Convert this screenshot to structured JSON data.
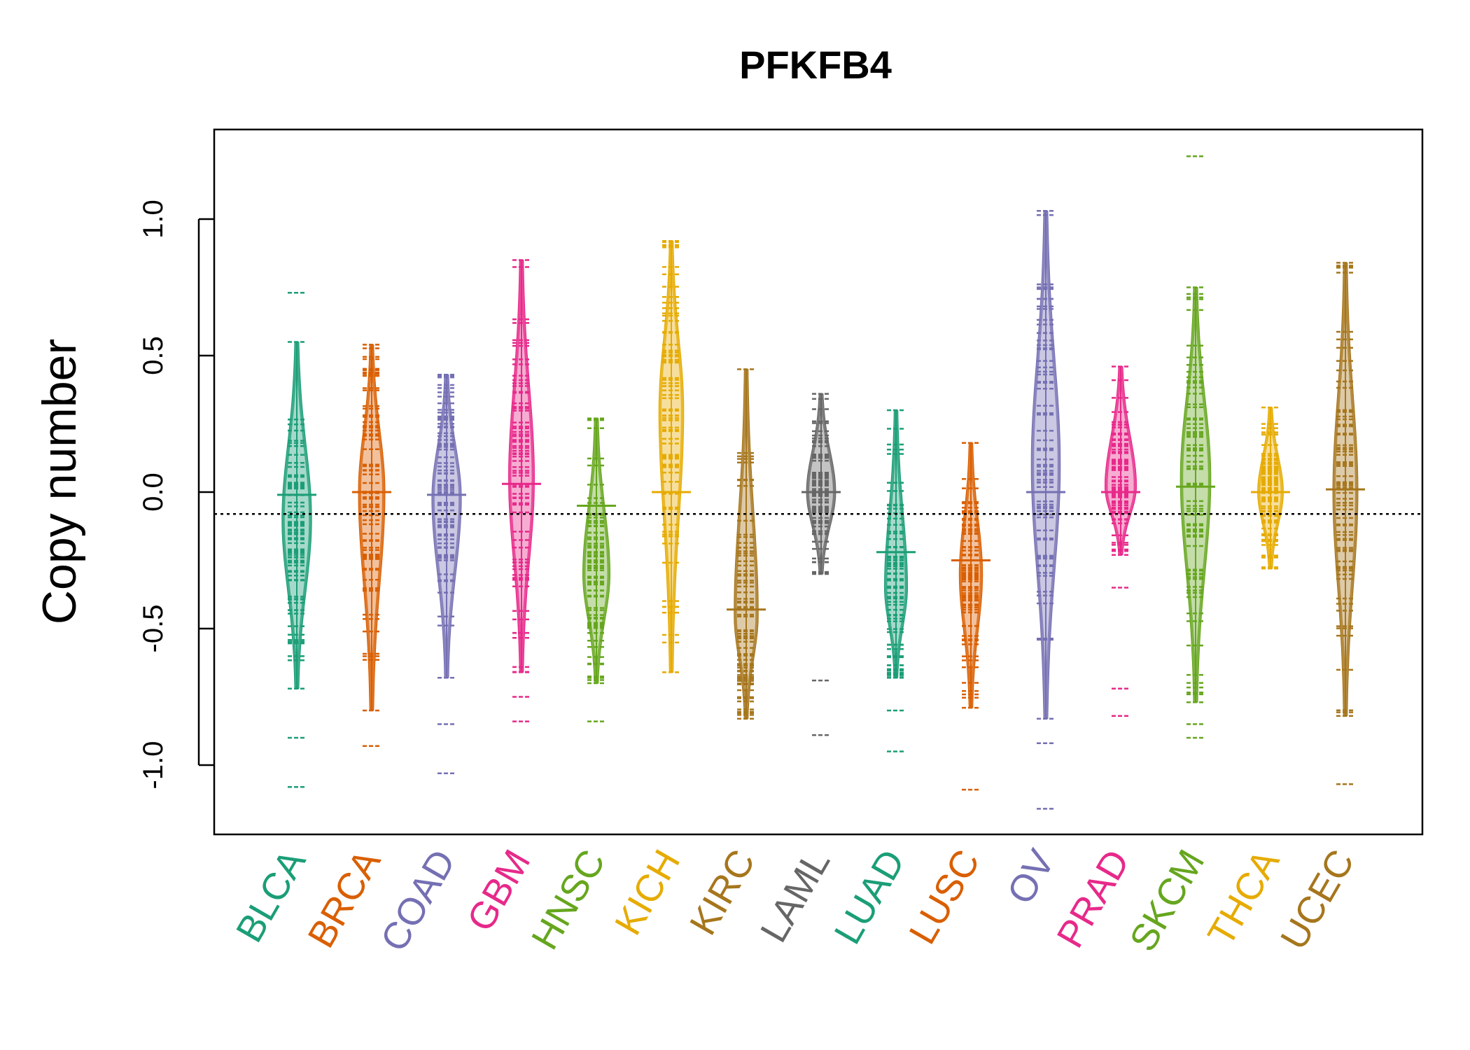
{
  "chart_data": {
    "type": "beanplot",
    "title": "PFKFB4",
    "xlabel": "",
    "ylabel": "Copy number",
    "ylim": [
      -1.25,
      1.3
    ],
    "y_ticks": [
      -1.0,
      -0.5,
      0.0,
      0.5,
      1.0
    ],
    "y_tick_labels": [
      "-1.0",
      "-0.5",
      "0.0",
      "0.5",
      "1.0"
    ],
    "reference_line": -0.08,
    "categories": [
      {
        "name": "BLCA",
        "color": "#1B9E77",
        "min": -0.72,
        "max": 0.55,
        "mean": -0.01,
        "outliers": [
          0.73,
          -0.9,
          -1.08
        ],
        "mode": -0.1
      },
      {
        "name": "BRCA",
        "color": "#D95F02",
        "min": -0.8,
        "max": 0.54,
        "mean": 0.0,
        "outliers": [
          -0.93
        ],
        "mode": 0.0
      },
      {
        "name": "COAD",
        "color": "#7570B3",
        "min": -0.68,
        "max": 0.43,
        "mean": -0.01,
        "outliers": [
          -0.85,
          -1.03
        ],
        "mode": -0.02
      },
      {
        "name": "GBM",
        "color": "#E7298A",
        "min": -0.66,
        "max": 0.85,
        "mean": 0.03,
        "outliers": [
          -0.75,
          -0.84
        ],
        "mode": 0.05
      },
      {
        "name": "HNSC",
        "color": "#66A61E",
        "min": -0.7,
        "max": 0.27,
        "mean": -0.05,
        "outliers": [
          -0.84
        ],
        "mode": -0.3
      },
      {
        "name": "KICH",
        "color": "#E6AB02",
        "min": -0.66,
        "max": 0.92,
        "mean": 0.0,
        "outliers": [],
        "mode": 0.3
      },
      {
        "name": "KIRC",
        "color": "#A6761D",
        "min": -0.83,
        "max": 0.45,
        "mean": -0.43,
        "outliers": [],
        "mode": -0.45
      },
      {
        "name": "LAML",
        "color": "#666666",
        "min": -0.3,
        "max": 0.36,
        "mean": 0.0,
        "outliers": [
          -0.69,
          -0.89
        ],
        "mode": 0.0
      },
      {
        "name": "LUAD",
        "color": "#1B9E77",
        "min": -0.68,
        "max": 0.3,
        "mean": -0.22,
        "outliers": [
          -0.8,
          -0.95
        ],
        "mode": -0.35
      },
      {
        "name": "LUSC",
        "color": "#D95F02",
        "min": -0.79,
        "max": 0.18,
        "mean": -0.25,
        "outliers": [
          -1.09
        ],
        "mode": -0.3
      },
      {
        "name": "OV",
        "color": "#7570B3",
        "min": -0.83,
        "max": 1.03,
        "mean": 0.0,
        "outliers": [
          -0.92,
          -1.16
        ],
        "mode": 0.1
      },
      {
        "name": "PRAD",
        "color": "#E7298A",
        "min": -0.23,
        "max": 0.46,
        "mean": 0.0,
        "outliers": [
          -0.35,
          -0.72,
          -0.82
        ],
        "mode": 0.02
      },
      {
        "name": "SKCM",
        "color": "#66A61E",
        "min": -0.77,
        "max": 0.75,
        "mean": 0.02,
        "outliers": [
          -0.85,
          -0.9,
          1.23
        ],
        "mode": 0.05
      },
      {
        "name": "THCA",
        "color": "#E6AB02",
        "min": -0.28,
        "max": 0.31,
        "mean": 0.0,
        "outliers": [],
        "mode": 0.0
      },
      {
        "name": "UCEC",
        "color": "#A6761D",
        "min": -0.82,
        "max": 0.84,
        "mean": 0.01,
        "outliers": [
          -1.07
        ],
        "mode": 0.0
      }
    ]
  }
}
